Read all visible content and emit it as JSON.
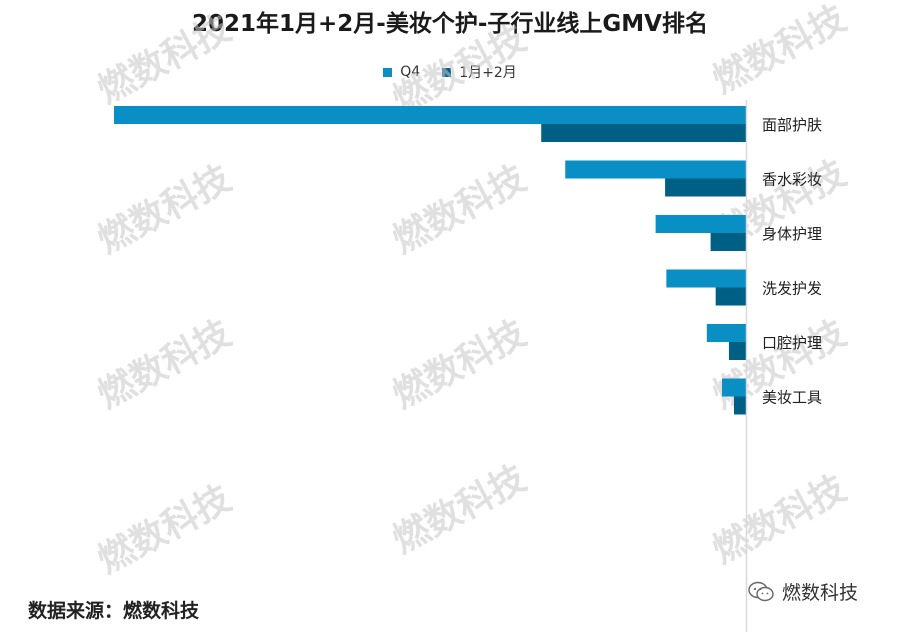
{
  "title": "2021年1月+2月-美妆个护-子行业线上GMV排名",
  "source": "数据来源：燃数科技",
  "watermark": "燃数科技",
  "wechat_label": "燃数科技",
  "colors": {
    "q4": "#0A8FC4",
    "jan_feb": "#005F85",
    "axis": "#D9D9D9",
    "watermark": "#C8C8C8"
  },
  "chart_data": {
    "type": "bar",
    "orientation": "horizontal",
    "x_direction": "reversed",
    "categories": [
      "面部护肤",
      "香水彩妆",
      "身体护理",
      "洗发护发",
      "口腔护理",
      "美妆工具"
    ],
    "series": [
      {
        "name": "Q4",
        "values": [
          100,
          28.6,
          14.3,
          12.6,
          6.2,
          3.8
        ]
      },
      {
        "name": "1月+2月",
        "values": [
          32.4,
          12.8,
          5.6,
          4.8,
          2.7,
          1.9
        ]
      }
    ],
    "legend_position": "top",
    "grid": false,
    "xlim": [
      0,
      100
    ]
  }
}
